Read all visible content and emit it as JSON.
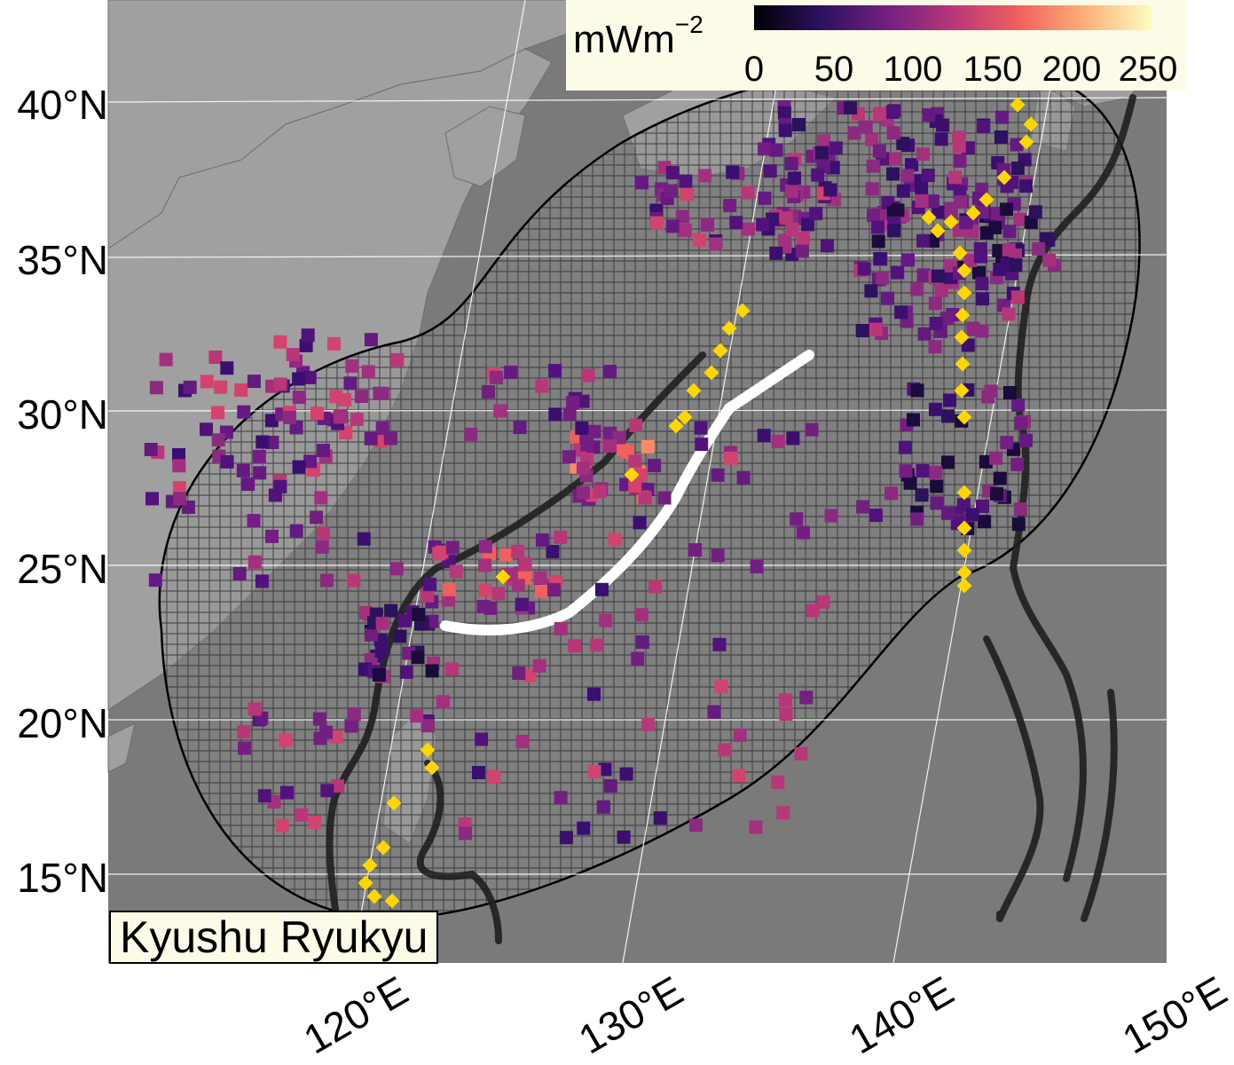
{
  "map": {
    "region_label": "Kyushu Ryukyu",
    "colors": {
      "ocean": "#7a7a7a",
      "land": "#a0a0a0",
      "ellipse_fill": "#8c8c8c",
      "hatch": "#333333",
      "trench_lines": "#1f1f1f",
      "slab_line": "#ffffff",
      "volcano_marker": "#ffd700"
    },
    "colorbar": {
      "unit_base": "mWm",
      "unit_exponent": "−2",
      "ticks": [
        "0",
        "50",
        "100",
        "150",
        "200",
        "250"
      ],
      "range": [
        0,
        250
      ],
      "colormap": "magma"
    },
    "lat_labels": [
      "40°N",
      "35°N",
      "30°N",
      "25°N",
      "20°N",
      "15°N"
    ],
    "lon_labels": [
      "120°E",
      "130°E",
      "140°E",
      "150°E"
    ],
    "markers": {
      "heat_flow_points": "square",
      "volcanoes": "diamond"
    }
  }
}
